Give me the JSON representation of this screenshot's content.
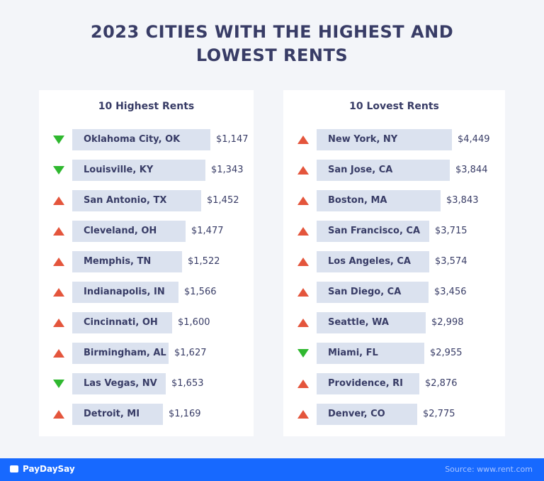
{
  "header": {
    "title_line1": "2023 CITIES WITH THE HIGHEST AND",
    "title_line2": "LOWEST RENTS"
  },
  "panels": [
    {
      "heading": "10 Highest Rents",
      "rows": [
        {
          "city": "Oklahoma City, OK",
          "rent": "$1,147",
          "trend": "down"
        },
        {
          "city": "Louisville, KY",
          "rent": "$1,343",
          "trend": "down"
        },
        {
          "city": "San Antonio, TX",
          "rent": "$1,452",
          "trend": "up"
        },
        {
          "city": "Cleveland, OH",
          "rent": "$1,477",
          "trend": "up"
        },
        {
          "city": "Memphis, TN",
          "rent": "$1,522",
          "trend": "up"
        },
        {
          "city": "Indianapolis, IN",
          "rent": "$1,566",
          "trend": "up"
        },
        {
          "city": "Cincinnati, OH",
          "rent": "$1,600",
          "trend": "up"
        },
        {
          "city": "Birmingham, AL",
          "rent": "$1,627",
          "trend": "up"
        },
        {
          "city": "Las Vegas, NV",
          "rent": "$1,653",
          "trend": "down"
        },
        {
          "city": "Detroit, MI",
          "rent": "$1,169",
          "trend": "up"
        }
      ]
    },
    {
      "heading": "10 Lovest Rents",
      "rows": [
        {
          "city": "New York, NY",
          "rent": "$4,449",
          "trend": "up"
        },
        {
          "city": "San Jose, CA",
          "rent": "$3,844",
          "trend": "up"
        },
        {
          "city": "Boston, MA",
          "rent": "$3,843",
          "trend": "up"
        },
        {
          "city": "San Francisco, CA",
          "rent": "$3,715",
          "trend": "up"
        },
        {
          "city": "Los Angeles, CA",
          "rent": "$3,574",
          "trend": "up"
        },
        {
          "city": "San Diego, CA",
          "rent": "$3,456",
          "trend": "up"
        },
        {
          "city": "Seattle, WA",
          "rent": "$2,998",
          "trend": "up"
        },
        {
          "city": "Miami, FL",
          "rent": "$2,955",
          "trend": "down"
        },
        {
          "city": "Providence, RI",
          "rent": "$2,876",
          "trend": "up"
        },
        {
          "city": "Denver, CO",
          "rent": "$2,775",
          "trend": "up"
        }
      ]
    }
  ],
  "footer": {
    "brand": "PayDaySay",
    "source": "Source: www.rent.com"
  }
}
